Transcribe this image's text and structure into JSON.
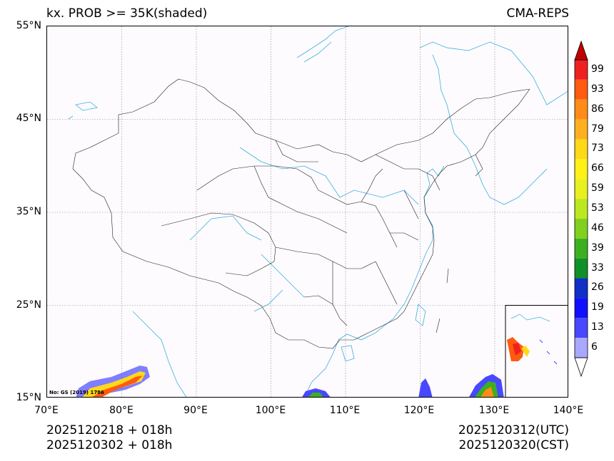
{
  "title": "kx. PROB >= 35K(shaded)",
  "source": "CMA-REPS",
  "lat_ticks": [
    "55°N",
    "45°N",
    "35°N",
    "25°N",
    "15°N"
  ],
  "lon_ticks": [
    "70°E",
    "80°E",
    "90°E",
    "100°E",
    "110°E",
    "120°E",
    "130°E",
    "140°E"
  ],
  "map_note": "No: GS (2019) 1786",
  "footer": {
    "left_line1": "2025120218  +  018h",
    "left_line2": "2025120302  +  018h",
    "right_line1": "2025120312(UTC)",
    "right_line2": "2025120320(CST)"
  },
  "colorbar": {
    "labels": [
      "99",
      "93",
      "86",
      "79",
      "73",
      "66",
      "59",
      "53",
      "46",
      "39",
      "33",
      "26",
      "19",
      "13",
      "6"
    ],
    "colors": [
      "#f02020",
      "#ff5a10",
      "#ff8c18",
      "#ffb020",
      "#ffd818",
      "#fff018",
      "#e8f020",
      "#bce820",
      "#80d020",
      "#3cb020",
      "#109028",
      "#1030c8",
      "#1010ff",
      "#4848ff",
      "#a8a8ff"
    ],
    "over_color": "#c00000"
  },
  "colors": {
    "coast": "#38b0e0",
    "border": "#202020",
    "grid": "#888888"
  }
}
